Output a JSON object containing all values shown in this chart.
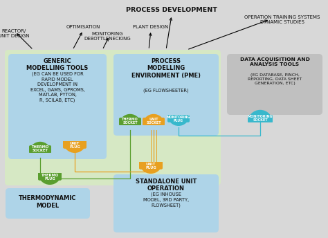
{
  "bg_color": "#d8d8d8",
  "light_green_bg": "#d6e8c4",
  "light_blue_box": "#aed4e8",
  "green_plug": "#5a9e2f",
  "yellow_plug": "#e8a020",
  "cyan_plug": "#38b8cc",
  "gray_box": "#c0c0c0",
  "text_dark": "#111111",
  "title": "PROCESS DEVELOPMENT",
  "box1_title": "GENERIC\nMODELLING TOOLS",
  "box1_body": "(EG CAN BE USED FOR\nRAPID MODEL\nDEVELOPMENT IN\nEXCEL, GAMS, GPROMS,\nMATLAB, PYTON,\nR, SCILAB, ETC)",
  "box2_title": "PROCESS\nMODELLING\nENVIRONMENT (PME)",
  "box2_body": "(EG FLOWSHEETER)",
  "box3_title": "DATA ACQUISITION AND\nANALYSIS TOOLS",
  "box3_body": "(EG DATABASE, PINCH,\nREPORTING, DATA SHEET\nGENERATION, ETC)",
  "box4_title": "THERMODYNAMIC\nMODEL",
  "box5_title": "STANDALONE UNIT\nOPERATION",
  "box5_body": "(EG INHOUSE\nMODEL, 3RD PARTY,\nFLOWSHEET)"
}
